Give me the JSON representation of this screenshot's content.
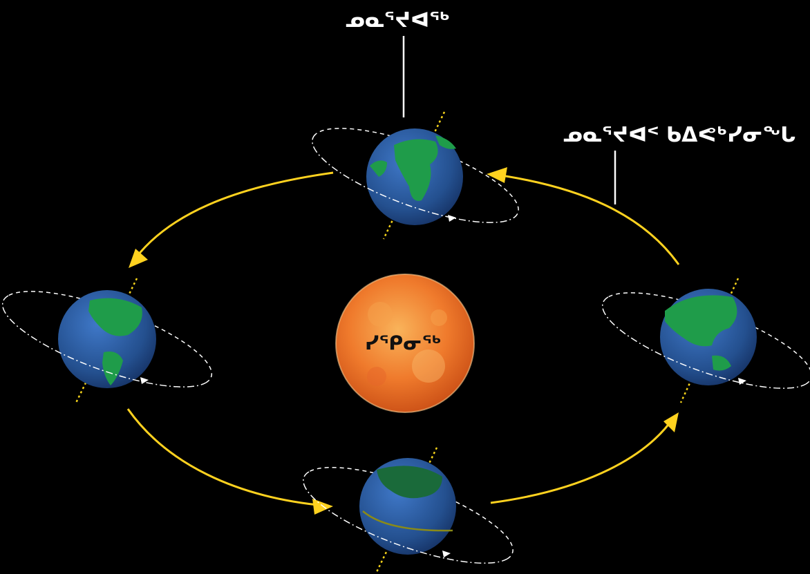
{
  "labels": {
    "top": "ᓄᓇᕐᔪᐊᖅ",
    "right": "ᓄᓇᕐᔪᐊᑉ ᑲᐃᕙᒃᓯᓂᖓ",
    "sun": "ᓯᕿᓂᖅ"
  },
  "colors": {
    "background": "#000000",
    "orbit_arrow": "#ffd21f",
    "axis": "#f5d31a",
    "ocean": "#2a5aa8",
    "land": "#1f9c4a",
    "sun": "#f07a2a"
  }
}
